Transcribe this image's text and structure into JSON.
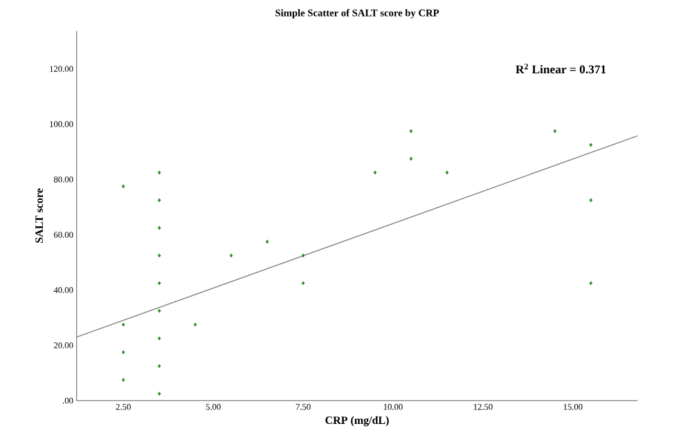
{
  "chart_data": {
    "type": "scatter",
    "title": "Simple Scatter of SALT score by CRP",
    "xlabel": "CRP (mg/dL)",
    "ylabel": "SALT score",
    "annotations": [
      "R$^{2}$ Linear = 0.371"
    ],
    "series": [
      {
        "color": "#2e8b2e",
        "marker": "diamond",
        "x": [
          2.5,
          2.5,
          2.5,
          2.5,
          3.5,
          3.5,
          3.5,
          3.5,
          3.5,
          3.5,
          3.5,
          3.5,
          3.5,
          4.5,
          5.5,
          6.5,
          7.5,
          7.5,
          9.5,
          10.5,
          10.5,
          11.5,
          14.5,
          15.5,
          15.5,
          15.5
        ],
        "values": [
          77.5,
          27.5,
          17.5,
          7.5,
          82.5,
          72.5,
          62.5,
          52.5,
          42.5,
          32.5,
          22.5,
          12.5,
          2.5,
          27.5,
          52.5,
          57.5,
          52.5,
          42.5,
          82.5,
          97.5,
          87.5,
          82.5,
          97.5,
          92.5,
          72.5,
          42.5
        ]
      },
      {
        "type": "line",
        "color": "#7f7f7f",
        "x": [
          1.2,
          16.8
        ],
        "values": [
          23,
          95.8
        ]
      }
    ],
    "xlim": [
      1.2,
      16.8
    ],
    "ylim": [
      0,
      133.75
    ],
    "xticks": [
      {
        "value": 2.5,
        "label": "2.50"
      },
      {
        "value": 5,
        "label": "5.00"
      },
      {
        "value": 7.5,
        "label": "7.50"
      },
      {
        "value": 10,
        "label": "10.00"
      },
      {
        "value": 12.5,
        "label": "12.50"
      },
      {
        "value": 15,
        "label": "15.00"
      }
    ],
    "yticks": [
      {
        "value": 0,
        "label": ".00"
      },
      {
        "value": 20,
        "label": "20.00"
      },
      {
        "value": 40,
        "label": "40.00"
      },
      {
        "value": 60,
        "label": "60.00"
      },
      {
        "value": 80,
        "label": "80.00"
      },
      {
        "value": 100,
        "label": "100.00"
      },
      {
        "value": 120,
        "label": "120.00"
      }
    ]
  }
}
